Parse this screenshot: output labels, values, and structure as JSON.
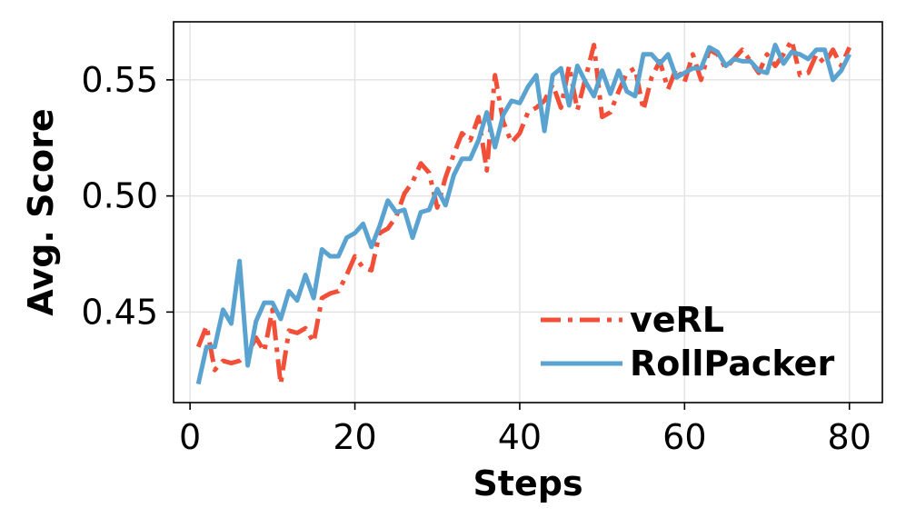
{
  "chart_data": {
    "type": "line",
    "xlabel": "Steps",
    "ylabel": "Avg. Score",
    "xlim": [
      -2,
      84
    ],
    "ylim": [
      0.411,
      0.575
    ],
    "xticks": [
      0,
      20,
      40,
      60,
      80
    ],
    "xtick_labels": [
      "0",
      "20",
      "40",
      "60",
      "80"
    ],
    "yticks": [
      0.45,
      0.5,
      0.55
    ],
    "ytick_labels": [
      "0.45",
      "0.50",
      "0.55"
    ],
    "grid": true,
    "legend_position": "lower-right",
    "series": [
      {
        "name": "veRL",
        "color": "#f24f38",
        "style": "dashdot",
        "x": [
          1,
          2,
          3,
          4,
          5,
          6,
          7,
          8,
          9,
          10,
          11,
          12,
          13,
          14,
          15,
          16,
          17,
          18,
          19,
          20,
          21,
          22,
          23,
          24,
          25,
          26,
          27,
          28,
          29,
          30,
          31,
          32,
          33,
          34,
          35,
          36,
          37,
          38,
          39,
          40,
          41,
          42,
          43,
          44,
          45,
          46,
          47,
          48,
          49,
          50,
          51,
          52,
          53,
          54,
          55,
          56,
          57,
          58,
          59,
          60,
          61,
          62,
          63,
          64,
          65,
          66,
          67,
          68,
          69,
          70,
          71,
          72,
          73,
          74,
          75,
          76,
          77,
          78,
          79,
          80
        ],
        "y": [
          0.435,
          0.444,
          0.425,
          0.429,
          0.428,
          0.429,
          0.432,
          0.439,
          0.433,
          0.451,
          0.419,
          0.442,
          0.441,
          0.443,
          0.437,
          0.456,
          0.458,
          0.459,
          0.466,
          0.474,
          0.469,
          0.468,
          0.484,
          0.486,
          0.491,
          0.501,
          0.506,
          0.514,
          0.51,
          0.495,
          0.508,
          0.518,
          0.527,
          0.524,
          0.534,
          0.511,
          0.552,
          0.532,
          0.523,
          0.527,
          0.536,
          0.538,
          0.541,
          0.548,
          0.538,
          0.556,
          0.537,
          0.551,
          0.565,
          0.534,
          0.536,
          0.545,
          0.553,
          0.555,
          0.537,
          0.551,
          0.558,
          0.546,
          0.555,
          0.549,
          0.561,
          0.55,
          0.563,
          0.561,
          0.555,
          0.559,
          0.563,
          0.558,
          0.553,
          0.561,
          0.556,
          0.561,
          0.567,
          0.552,
          0.553,
          0.561,
          0.557,
          0.563,
          0.556,
          0.564
        ]
      },
      {
        "name": "RollPacker",
        "color": "#5aa2cf",
        "style": "solid",
        "x": [
          1,
          2,
          3,
          4,
          5,
          6,
          7,
          8,
          9,
          10,
          11,
          12,
          13,
          14,
          15,
          16,
          17,
          18,
          19,
          20,
          21,
          22,
          23,
          24,
          25,
          26,
          27,
          28,
          29,
          30,
          31,
          32,
          33,
          34,
          35,
          36,
          37,
          38,
          39,
          40,
          41,
          42,
          43,
          44,
          45,
          46,
          47,
          48,
          49,
          50,
          51,
          52,
          53,
          54,
          55,
          56,
          57,
          58,
          59,
          60,
          61,
          62,
          63,
          64,
          65,
          66,
          67,
          68,
          69,
          70,
          71,
          72,
          73,
          74,
          75,
          76,
          77,
          78,
          79,
          80
        ],
        "y": [
          0.419,
          0.435,
          0.435,
          0.451,
          0.445,
          0.472,
          0.427,
          0.446,
          0.454,
          0.454,
          0.447,
          0.459,
          0.455,
          0.466,
          0.456,
          0.477,
          0.474,
          0.474,
          0.482,
          0.484,
          0.488,
          0.478,
          0.487,
          0.498,
          0.493,
          0.494,
          0.482,
          0.493,
          0.494,
          0.503,
          0.496,
          0.509,
          0.516,
          0.516,
          0.524,
          0.536,
          0.521,
          0.535,
          0.541,
          0.54,
          0.547,
          0.552,
          0.528,
          0.552,
          0.555,
          0.539,
          0.556,
          0.549,
          0.543,
          0.554,
          0.544,
          0.554,
          0.545,
          0.543,
          0.561,
          0.561,
          0.557,
          0.561,
          0.551,
          0.553,
          0.555,
          0.555,
          0.564,
          0.562,
          0.556,
          0.559,
          0.558,
          0.558,
          0.554,
          0.553,
          0.565,
          0.557,
          0.562,
          0.561,
          0.559,
          0.563,
          0.563,
          0.55,
          0.554,
          0.561
        ]
      }
    ]
  }
}
